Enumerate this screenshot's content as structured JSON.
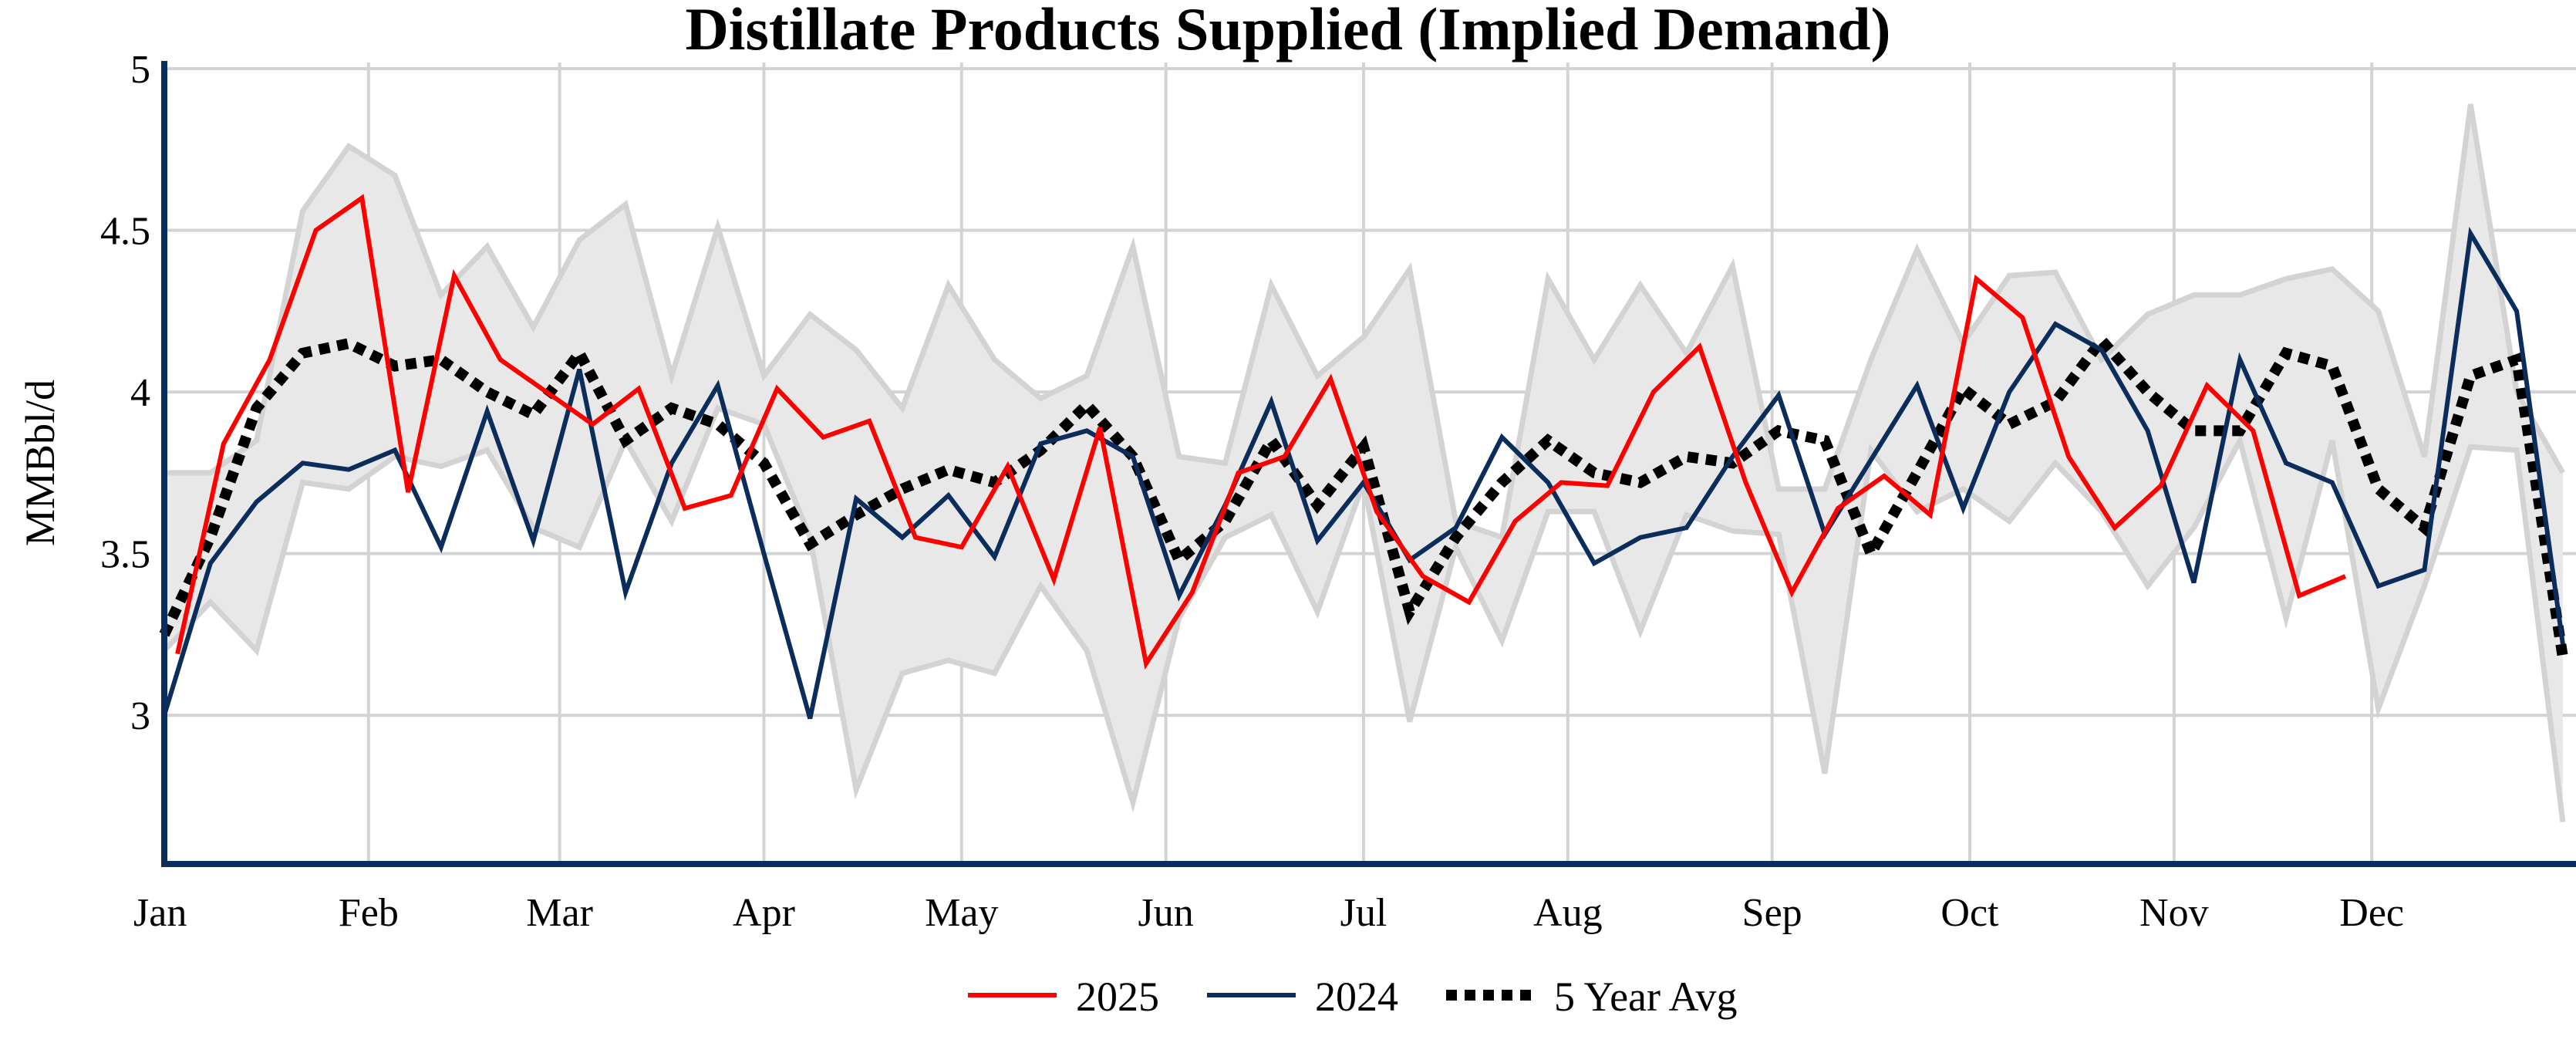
{
  "chart_data": {
    "type": "line",
    "title": "Distillate Products Supplied (Implied Demand)",
    "xlabel": "",
    "ylabel": "MMBbl/d",
    "ylim": [
      2.54,
      5
    ],
    "yticks": [
      3,
      3.5,
      4,
      4.5,
      5
    ],
    "ytick_labels": [
      "3",
      "3.5",
      "4",
      "4.5",
      "5"
    ],
    "xtick_labels": [
      "Jan",
      "Feb",
      "Mar",
      "Apr",
      "May",
      "Jun",
      "Jul",
      "Aug",
      "Sep",
      "Oct",
      "Nov",
      "Dec"
    ],
    "grid": true,
    "legend_position": "bottom",
    "x_unit": "week of year (first point = Jan 1, 7-day spacing)",
    "colors": {
      "2025": "#ff0000",
      "2024": "#0b2d5b",
      "avg": "#000000",
      "range_fill": "#e8e8e8",
      "range_line": "#d3d3d3",
      "axis": "#0b2d5b",
      "grid": "#d3d3d3"
    },
    "range_band": {
      "upper": [
        3.75,
        3.75,
        3.85,
        4.56,
        4.76,
        4.67,
        4.3,
        4.45,
        4.2,
        4.47,
        4.58,
        4.05,
        4.51,
        4.05,
        4.24,
        4.13,
        3.95,
        4.33,
        4.1,
        3.98,
        4.05,
        4.45,
        3.8,
        3.78,
        4.33,
        4.05,
        4.17,
        4.38,
        3.6,
        3.55,
        4.35,
        4.1,
        4.33,
        4.12,
        4.39,
        3.7,
        3.7,
        4.1,
        4.44,
        4.15,
        4.36,
        4.37,
        4.1,
        4.24,
        4.3,
        4.3,
        4.35,
        4.38,
        4.25,
        3.8,
        4.89,
        4.0,
        3.75
      ],
      "lower": [
        3.2,
        3.35,
        3.2,
        3.72,
        3.7,
        3.8,
        3.77,
        3.82,
        3.58,
        3.52,
        3.85,
        3.6,
        3.95,
        3.9,
        3.55,
        2.77,
        3.13,
        3.17,
        3.13,
        3.4,
        3.2,
        2.73,
        3.3,
        3.55,
        3.62,
        3.32,
        3.72,
        2.98,
        3.52,
        3.23,
        3.63,
        3.63,
        3.26,
        3.62,
        3.57,
        3.56,
        2.82,
        3.82,
        3.63,
        3.7,
        3.6,
        3.78,
        3.63,
        3.4,
        3.58,
        3.85,
        3.3,
        3.85,
        3.02,
        3.4,
        3.83,
        3.82,
        2.67
      ]
    },
    "series": [
      {
        "name": "2025",
        "start_day": 2,
        "values": [
          3.19,
          3.84,
          4.1,
          4.5,
          4.6,
          3.69,
          4.36,
          4.1,
          4.0,
          3.9,
          4.01,
          3.64,
          3.68,
          4.01,
          3.86,
          3.91,
          3.55,
          3.52,
          3.77,
          3.42,
          3.89,
          3.16,
          3.38,
          3.75,
          3.8,
          4.04,
          3.63,
          3.43,
          3.35,
          3.6,
          3.72,
          3.71,
          4.0,
          4.14,
          3.72,
          3.38,
          3.64,
          3.74,
          3.62,
          4.35,
          4.23,
          3.8,
          3.58,
          3.71,
          4.02,
          3.88,
          3.37,
          3.43
        ]
      },
      {
        "name": "2024",
        "start_day": 0,
        "values": [
          3.0,
          3.47,
          3.66,
          3.78,
          3.76,
          3.82,
          3.52,
          3.94,
          3.54,
          4.07,
          3.38,
          3.78,
          4.02,
          3.5,
          2.99,
          3.67,
          3.55,
          3.68,
          3.49,
          3.84,
          3.88,
          3.8,
          3.37,
          3.65,
          3.97,
          3.54,
          3.72,
          3.48,
          3.58,
          3.86,
          3.72,
          3.47,
          3.55,
          3.58,
          3.8,
          3.99,
          3.56,
          3.79,
          4.02,
          3.64,
          4.0,
          4.21,
          4.13,
          3.88,
          3.41,
          4.1,
          3.78,
          3.72,
          3.4,
          3.45,
          4.49,
          4.25,
          3.22
        ]
      },
      {
        "name": "5 Year Avg",
        "start_day": 0,
        "values": [
          3.25,
          3.55,
          3.95,
          4.12,
          4.15,
          4.08,
          4.1,
          4.0,
          3.93,
          4.12,
          3.85,
          3.95,
          3.9,
          3.78,
          3.53,
          3.62,
          3.7,
          3.76,
          3.72,
          3.82,
          3.96,
          3.8,
          3.48,
          3.6,
          3.85,
          3.65,
          3.83,
          3.32,
          3.55,
          3.72,
          3.85,
          3.75,
          3.72,
          3.8,
          3.78,
          3.88,
          3.85,
          3.5,
          3.75,
          4.01,
          3.9,
          3.97,
          4.16,
          4.0,
          3.88,
          3.88,
          4.12,
          4.08,
          3.7,
          3.58,
          4.05,
          4.1,
          3.18
        ]
      }
    ]
  },
  "legend": {
    "items": [
      "2025",
      "2024",
      "5 Year Avg"
    ]
  }
}
